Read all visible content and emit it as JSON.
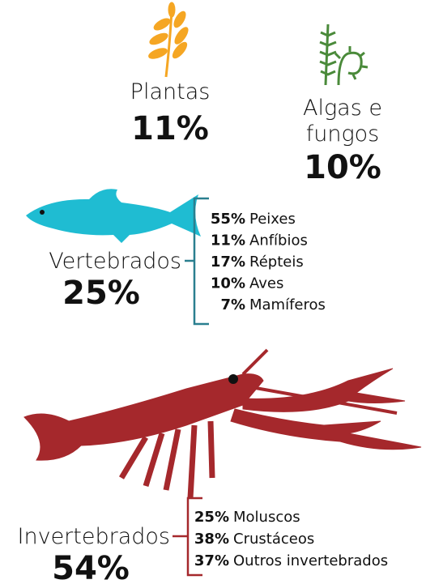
{
  "groups": [
    {
      "name": "Plantas",
      "percent": "11%"
    },
    {
      "name_lines": [
        "Algas e",
        "fungos"
      ],
      "percent": "10%"
    },
    {
      "name": "Vertebrados",
      "percent": "25%",
      "items": [
        {
          "percent": "55%",
          "label": "Peixes"
        },
        {
          "percent": "11%",
          "label": "Anfíbios"
        },
        {
          "percent": "17%",
          "label": "Répteis"
        },
        {
          "percent": "10%",
          "label": "Aves"
        },
        {
          "percent": "7%",
          "label": "Mamíferos"
        }
      ]
    },
    {
      "name": "Invertebrados",
      "percent": "54%",
      "items": [
        {
          "percent": "25%",
          "label": "Moluscos"
        },
        {
          "percent": "38%",
          "label": "Crustáceos"
        },
        {
          "percent": "37%",
          "label": "Outros invertebrados"
        }
      ]
    }
  ]
}
